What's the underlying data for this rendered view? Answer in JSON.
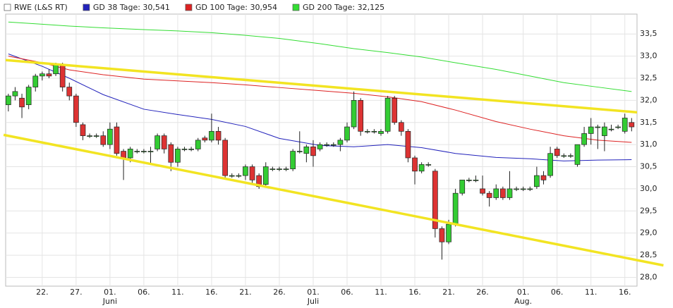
{
  "chart_data": {
    "type": "candlestick",
    "name": "RWE (L&S RT)",
    "x": [
      17,
      18,
      19,
      20,
      21,
      22,
      23,
      24,
      25,
      26,
      27,
      28,
      29,
      30,
      31,
      32,
      33,
      34,
      35,
      36,
      37,
      38,
      39,
      40,
      41,
      42,
      43,
      44,
      45,
      46,
      47,
      48,
      49,
      50,
      51,
      52,
      53,
      54,
      55,
      56,
      57,
      58,
      59,
      60,
      61,
      62,
      63,
      64,
      65,
      66,
      67,
      68,
      69,
      70,
      71,
      72,
      73,
      74,
      75,
      76,
      77,
      78,
      79,
      80,
      81,
      82,
      83,
      84,
      85,
      86,
      87,
      88,
      89,
      90,
      91,
      92,
      93,
      94,
      95,
      96,
      97,
      98,
      99,
      100,
      101,
      102,
      103,
      104,
      105,
      106,
      107,
      108,
      109
    ],
    "open": [
      31.9,
      32.1,
      32.05,
      31.9,
      32.3,
      32.55,
      32.6,
      32.6,
      32.8,
      32.3,
      32.1,
      31.45,
      31.2,
      31.2,
      31.2,
      31.0,
      31.4,
      30.85,
      30.7,
      30.85,
      30.85,
      30.85,
      30.9,
      31.2,
      31.0,
      30.6,
      30.9,
      30.9,
      30.9,
      31.15,
      31.1,
      31.3,
      31.1,
      30.3,
      30.3,
      30.3,
      30.5,
      30.3,
      30.1,
      30.45,
      30.45,
      30.45,
      30.45,
      30.85,
      30.8,
      30.95,
      30.9,
      31.0,
      31.0,
      31.0,
      31.1,
      31.4,
      32.0,
      31.3,
      31.3,
      31.25,
      31.3,
      32.05,
      31.5,
      31.3,
      30.7,
      30.4,
      30.55,
      30.4,
      29.1,
      28.8,
      29.2,
      29.9,
      30.2,
      30.2,
      30.0,
      29.9,
      29.8,
      30.0,
      29.8,
      30.0,
      30.0,
      30.0,
      30.05,
      30.3,
      30.3,
      30.9,
      30.75,
      30.75,
      30.55,
      31.0,
      31.25,
      31.4,
      31.2,
      31.35,
      31.4,
      31.3,
      31.5
    ],
    "high": [
      32.15,
      32.3,
      32.15,
      32.35,
      32.6,
      32.65,
      32.7,
      32.85,
      32.85,
      32.4,
      32.15,
      31.5,
      31.25,
      31.25,
      31.3,
      31.5,
      31.5,
      30.9,
      30.95,
      30.9,
      30.9,
      30.95,
      31.25,
      31.25,
      31.05,
      30.95,
      30.95,
      30.95,
      31.15,
      31.2,
      31.7,
      31.4,
      31.15,
      30.35,
      30.35,
      30.55,
      30.55,
      30.35,
      30.6,
      30.5,
      30.5,
      30.5,
      30.9,
      31.3,
      31.0,
      31.1,
      31.05,
      31.05,
      31.05,
      31.15,
      31.5,
      32.2,
      32.05,
      31.35,
      31.35,
      31.35,
      32.1,
      32.1,
      31.55,
      31.35,
      30.75,
      30.6,
      30.6,
      30.45,
      29.15,
      29.3,
      30.0,
      30.2,
      30.25,
      30.3,
      30.3,
      29.95,
      30.1,
      30.05,
      30.4,
      30.05,
      30.05,
      30.05,
      30.5,
      30.4,
      30.95,
      30.95,
      30.8,
      30.8,
      31.0,
      31.4,
      31.6,
      31.45,
      31.5,
      31.45,
      31.45,
      31.7,
      31.6
    ],
    "low": [
      31.75,
      32.0,
      31.6,
      31.8,
      32.2,
      32.45,
      32.5,
      32.55,
      32.2,
      32.0,
      31.4,
      31.1,
      31.15,
      31.15,
      30.95,
      30.9,
      30.75,
      30.2,
      30.6,
      30.8,
      30.8,
      30.55,
      30.85,
      30.8,
      30.4,
      30.5,
      30.85,
      30.85,
      30.85,
      31.05,
      31.05,
      31.0,
      30.25,
      30.25,
      30.25,
      30.2,
      30.1,
      30.0,
      30.05,
      30.4,
      30.4,
      30.4,
      30.4,
      30.8,
      30.6,
      30.5,
      30.85,
      30.95,
      30.95,
      30.85,
      31.05,
      31.35,
      31.2,
      31.25,
      31.25,
      31.2,
      31.25,
      31.45,
      31.2,
      30.6,
      30.1,
      30.35,
      30.5,
      28.9,
      28.4,
      28.75,
      29.15,
      29.85,
      30.15,
      30.15,
      29.85,
      29.6,
      29.75,
      29.75,
      29.75,
      29.95,
      29.95,
      29.95,
      30.0,
      30.1,
      30.25,
      30.7,
      30.7,
      30.7,
      30.5,
      30.95,
      31.0,
      30.9,
      30.85,
      31.3,
      31.35,
      31.25,
      31.3
    ],
    "close": [
      32.1,
      32.2,
      31.85,
      32.3,
      32.55,
      32.6,
      32.55,
      32.8,
      32.3,
      32.1,
      31.5,
      31.2,
      31.2,
      31.2,
      31.0,
      31.35,
      30.8,
      30.7,
      30.9,
      30.85,
      30.85,
      30.85,
      31.2,
      30.9,
      30.6,
      30.9,
      30.9,
      30.9,
      31.1,
      31.1,
      31.3,
      31.1,
      30.3,
      30.3,
      30.3,
      30.5,
      30.2,
      30.05,
      30.5,
      30.45,
      30.45,
      30.45,
      30.85,
      30.85,
      30.95,
      30.75,
      31.0,
      31.0,
      31.0,
      31.1,
      31.4,
      32.0,
      31.3,
      31.3,
      31.3,
      31.3,
      32.05,
      31.5,
      31.3,
      30.7,
      30.4,
      30.55,
      30.55,
      29.1,
      28.8,
      29.2,
      29.9,
      30.2,
      30.2,
      30.2,
      29.9,
      29.8,
      30.0,
      29.8,
      30.0,
      30.0,
      30.0,
      30.0,
      30.3,
      30.2,
      30.8,
      30.75,
      30.75,
      30.75,
      31.0,
      31.25,
      31.4,
      31.4,
      31.4,
      31.35,
      31.4,
      31.6,
      31.4
    ],
    "up_color": "#33cc33",
    "down_color": "#dd3333",
    "series": [
      {
        "name": "GD 38 Tage: 30,541",
        "color": "#2222bb",
        "x": [
          17,
          22,
          26,
          31,
          37,
          42,
          47,
          52,
          57,
          63,
          68,
          73,
          78,
          83,
          89,
          94,
          99,
          104,
          109
        ],
        "values": [
          33.05,
          32.77,
          32.5,
          32.13,
          31.8,
          31.68,
          31.57,
          31.41,
          31.14,
          30.98,
          30.95,
          31.0,
          30.93,
          30.8,
          30.71,
          30.68,
          30.63,
          30.65,
          30.66
        ]
      },
      {
        "name": "GD 100 Tage: 30,954",
        "color": "#dd2222",
        "x": [
          17,
          22,
          26,
          31,
          37,
          42,
          47,
          52,
          57,
          63,
          68,
          73,
          78,
          83,
          89,
          94,
          99,
          104,
          109
        ],
        "values": [
          33.0,
          32.85,
          32.69,
          32.58,
          32.48,
          32.44,
          32.4,
          32.35,
          32.29,
          32.22,
          32.16,
          32.08,
          31.97,
          31.78,
          31.52,
          31.35,
          31.2,
          31.1,
          31.05
        ]
      },
      {
        "name": "GD 200 Tage: 32,125",
        "color": "#33dd33",
        "x": [
          17,
          22,
          26,
          31,
          37,
          42,
          47,
          52,
          57,
          63,
          68,
          73,
          78,
          83,
          89,
          94,
          99,
          104,
          109
        ],
        "values": [
          33.77,
          33.72,
          33.68,
          33.64,
          33.6,
          33.57,
          33.53,
          33.47,
          33.4,
          33.28,
          33.17,
          33.08,
          32.98,
          32.85,
          32.7,
          32.55,
          32.4,
          32.3,
          32.2
        ]
      }
    ],
    "trendlines": [
      {
        "color": "#f2e422",
        "x": [
          16.6,
          109.8
        ],
        "values": [
          32.91,
          31.73
        ]
      },
      {
        "color": "#f2e422",
        "x": [
          16.3,
          113.7
        ],
        "values": [
          31.22,
          28.27
        ]
      }
    ],
    "xlim": [
      16.6,
      109.8
    ],
    "ylim": [
      27.8,
      33.95
    ],
    "xticks": [
      {
        "value": 22,
        "label": "22."
      },
      {
        "value": 27,
        "label": "27."
      },
      {
        "value": 32,
        "label": "01."
      },
      {
        "value": 37,
        "label": "06."
      },
      {
        "value": 42,
        "label": "11."
      },
      {
        "value": 47,
        "label": "16."
      },
      {
        "value": 52,
        "label": "21."
      },
      {
        "value": 57,
        "label": "26."
      },
      {
        "value": 62,
        "label": "01."
      },
      {
        "value": 67,
        "label": "06."
      },
      {
        "value": 72,
        "label": "11."
      },
      {
        "value": 77,
        "label": "16."
      },
      {
        "value": 82,
        "label": "21."
      },
      {
        "value": 87,
        "label": "26."
      },
      {
        "value": 93,
        "label": "01."
      },
      {
        "value": 98,
        "label": "06."
      },
      {
        "value": 103,
        "label": "11."
      },
      {
        "value": 108,
        "label": "16."
      }
    ],
    "month_labels": [
      {
        "value": 32,
        "label": "Juni"
      },
      {
        "value": 62,
        "label": "Juli"
      },
      {
        "value": 93,
        "label": "Aug."
      }
    ],
    "yticks": [
      {
        "value": 28,
        "label": "28,0"
      },
      {
        "value": 28.5,
        "label": "28,5"
      },
      {
        "value": 29,
        "label": "29,0"
      },
      {
        "value": 29.5,
        "label": "29,5"
      },
      {
        "value": 30,
        "label": "30,0"
      },
      {
        "value": 30.5,
        "label": "30,5"
      },
      {
        "value": 31,
        "label": "31,0"
      },
      {
        "value": 31.5,
        "label": "31,5"
      },
      {
        "value": 32,
        "label": "32,0"
      },
      {
        "value": 32.5,
        "label": "32,5"
      },
      {
        "value": 33,
        "label": "33,0"
      },
      {
        "value": 33.5,
        "label": "33,5"
      }
    ],
    "grid": true
  }
}
